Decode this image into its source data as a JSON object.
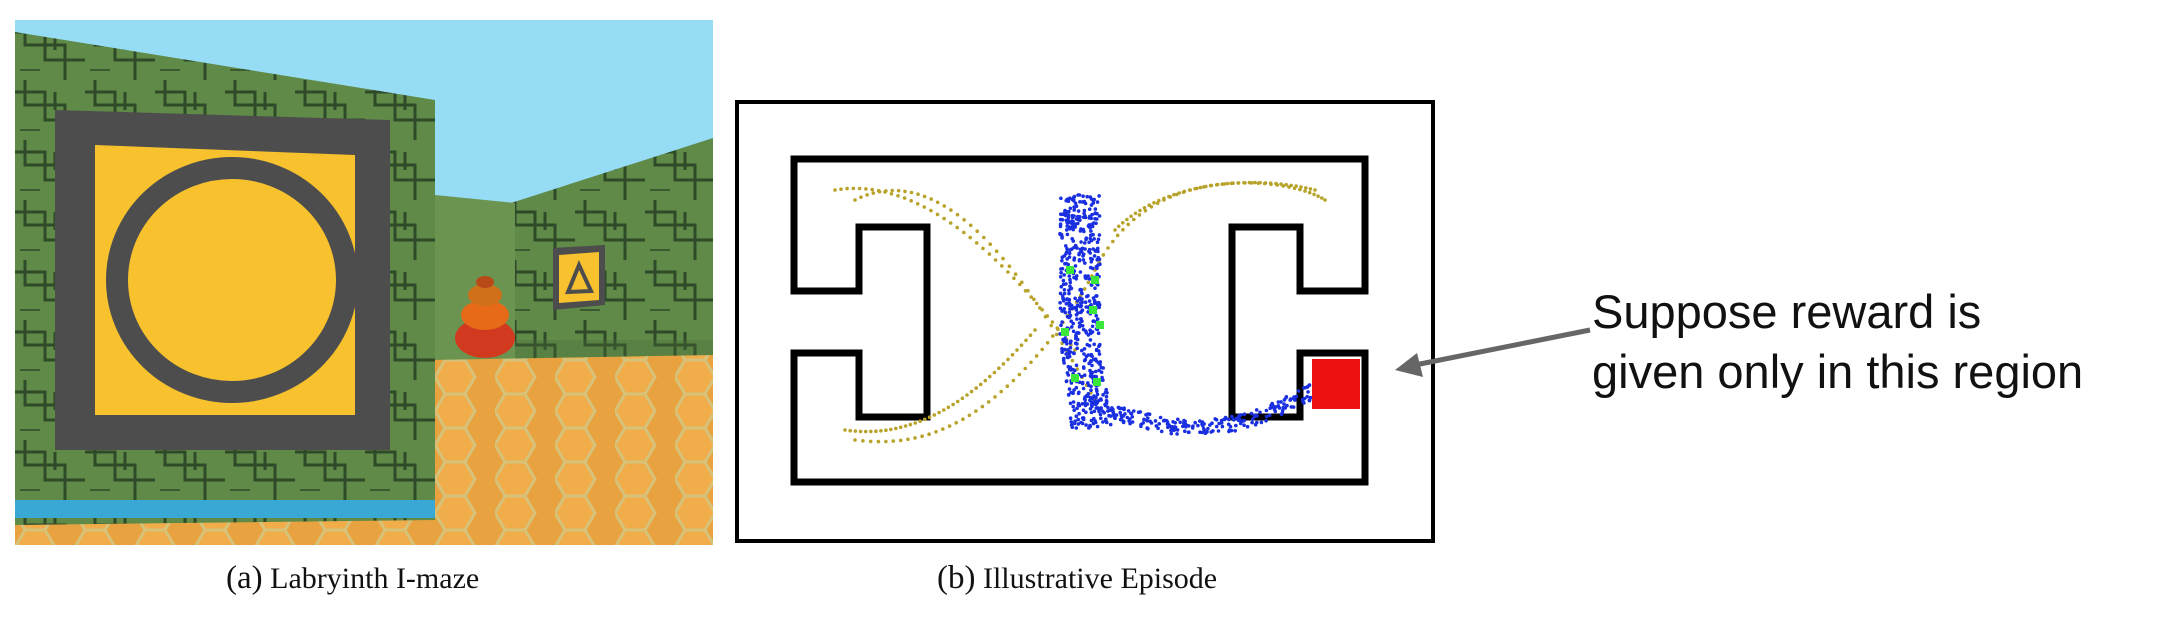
{
  "panel_a": {
    "caption_label": "(a)",
    "caption_text": "Labryinth I-maze",
    "colors": {
      "sky": "#97dcf5",
      "wall": "#5f8a48",
      "floor": "#e9a543",
      "sign": "#f7c22d",
      "frame": "#4d4d4d"
    }
  },
  "panel_b": {
    "caption_label": "(b)",
    "caption_text": "Illustrative Episode",
    "colors": {
      "walls": "#000000",
      "trajectory_early": "#b8a32a",
      "trajectory_late": "#1a2fe0",
      "markers": "#39e83a",
      "reward_region": "#ee1111"
    }
  },
  "annotation": {
    "line1": "Suppose reward is",
    "line2": "given only in this region",
    "arrow_color": "#666666"
  }
}
